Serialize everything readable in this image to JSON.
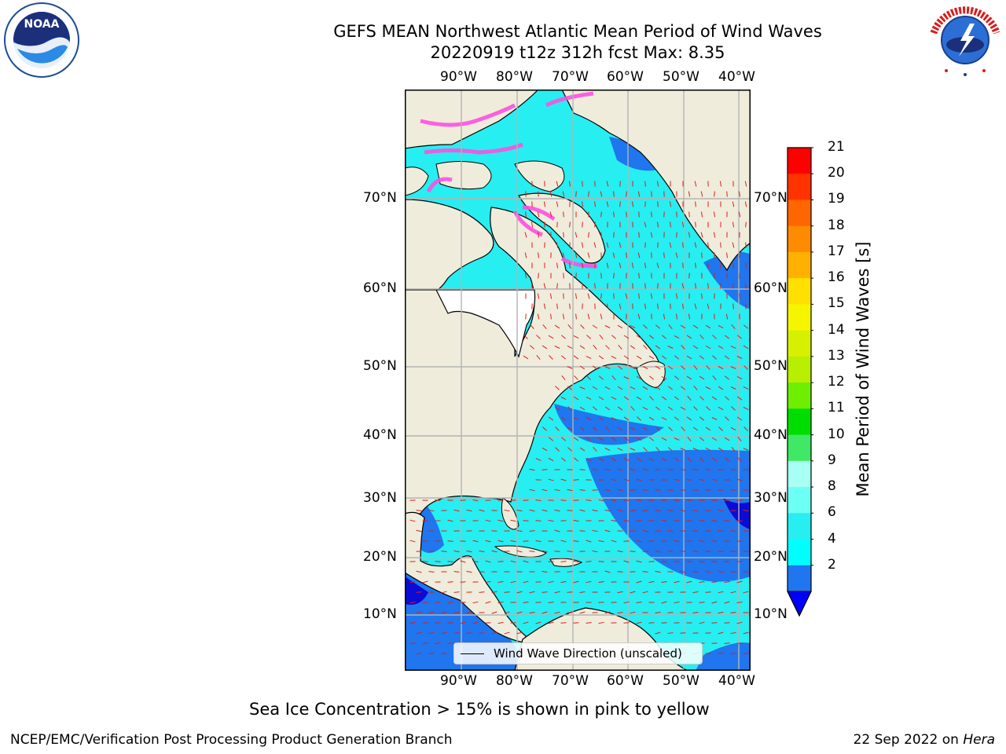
{
  "title": {
    "line1": "GEFS MEAN Northwest Atlantic Mean Period of Wind Waves",
    "line2": "20220919 t12z 312h fcst   Max: 8.35"
  },
  "map": {
    "lon_labels": [
      "90°W",
      "80°W",
      "70°W",
      "60°W",
      "50°W",
      "40°W"
    ],
    "lat_labels": [
      "70°N",
      "60°N",
      "50°N",
      "40°N",
      "30°N",
      "20°N",
      "10°N"
    ],
    "legend_label": "Wind Wave Direction (unscaled)",
    "colors": {
      "land": "#efecdb",
      "ocean_cyan": "#27eef1",
      "ocean_blue": "#1f76ee",
      "deep_blue": "#0b0bd6",
      "ice_pink": "#ff50e0",
      "arrow": "#e31a1a",
      "grid": "#b4b4b4"
    }
  },
  "colorbar": {
    "title": "Mean Period of Wind Waves [s]",
    "ticks": [
      "21",
      "20",
      "19",
      "18",
      "17",
      "16",
      "15",
      "14",
      "13",
      "12",
      "11",
      "10",
      "9",
      "8",
      "6",
      "4",
      "2"
    ],
    "colors": [
      "#ff0000",
      "#ff3300",
      "#ff6600",
      "#ff8c00",
      "#ffb000",
      "#ffe000",
      "#f5f500",
      "#d6f000",
      "#b8ee00",
      "#6eee00",
      "#00dd00",
      "#3fe865",
      "#a8fff3",
      "#6cfff3",
      "#27eef1",
      "#00ffff",
      "#1f76ee"
    ],
    "under_color": "#0000ff"
  },
  "caption": "Sea Ice Concentration > 15% is shown in pink to yellow",
  "footer": {
    "left": "NCEP/EMC/Verification Post Processing Product Generation Branch",
    "right_date": "22 Sep 2022 on ",
    "right_host": "Hera"
  },
  "logos": {
    "left": "NOAA",
    "right": "NATIONAL WEATHER SERVICE"
  }
}
